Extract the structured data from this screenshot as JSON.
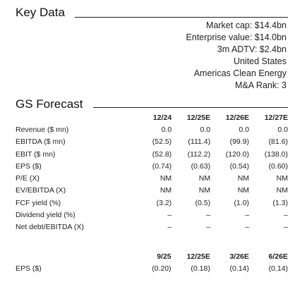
{
  "key_data": {
    "title": "Key Data",
    "lines": [
      "Market cap: $14.4bn",
      "Enterprise value: $14.0bn",
      "3m ADTV: $2.4bn",
      "United States",
      "Americas Clean Energy",
      "M&A Rank: 3"
    ]
  },
  "gs_forecast": {
    "title": "GS Forecast",
    "headers": [
      "12/24",
      "12/25E",
      "12/26E",
      "12/27E"
    ],
    "rows": [
      {
        "label": "Revenue ($ mn)",
        "values": [
          "0.0",
          "0.0",
          "0.0",
          "0.0"
        ]
      },
      {
        "label": "EBITDA ($ mn)",
        "values": [
          "(52.5)",
          "(111.4)",
          "(99.9)",
          "(81.6)"
        ]
      },
      {
        "label": "EBIT ($ mn)",
        "values": [
          "(52.8)",
          "(112.2)",
          "(120.0)",
          "(138.0)"
        ]
      },
      {
        "label": "EPS ($)",
        "values": [
          "(0.74)",
          "(0.63)",
          "(0.54)",
          "(0.60)"
        ]
      },
      {
        "label": "P/E (X)",
        "values": [
          "NM",
          "NM",
          "NM",
          "NM"
        ]
      },
      {
        "label": "EV/EBITDA (X)",
        "values": [
          "NM",
          "NM",
          "NM",
          "NM"
        ]
      },
      {
        "label": "FCF yield (%)",
        "values": [
          "(3.2)",
          "(0.5)",
          "(1.0)",
          "(1.3)"
        ]
      },
      {
        "label": "Dividend yield (%)",
        "values": [
          "–",
          "–",
          "–",
          "–"
        ]
      },
      {
        "label": "Net debt/EBITDA (X)",
        "values": [
          "–",
          "–",
          "–",
          "–"
        ]
      }
    ]
  },
  "quarterly": {
    "headers": [
      "9/25",
      "12/25E",
      "3/26E",
      "6/26E"
    ],
    "rows": [
      {
        "label": "EPS ($)",
        "values": [
          "(0.20)",
          "(0.18)",
          "(0.14)",
          "(0.14)"
        ]
      }
    ]
  }
}
